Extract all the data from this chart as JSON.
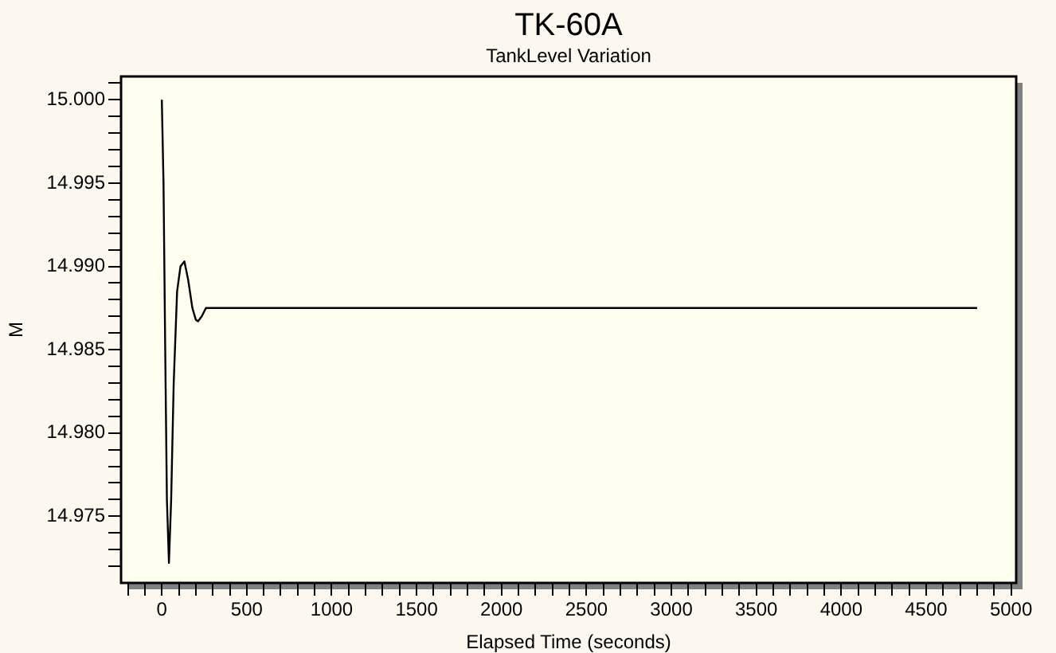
{
  "chart_data": {
    "type": "line",
    "title": "TK-60A",
    "subtitle": "TankLevel Variation",
    "xlabel": "Elapsed Time (seconds)",
    "ylabel": "M",
    "series": [
      {
        "color": "#000000",
        "x": [
          0,
          10,
          20,
          30,
          42,
          55,
          70,
          90,
          110,
          133,
          155,
          180,
          200,
          213,
          235,
          260,
          4800
        ],
        "values": [
          15.0,
          14.995,
          14.985,
          14.976,
          14.9722,
          14.976,
          14.983,
          14.9885,
          14.99,
          14.9903,
          14.9892,
          14.9875,
          14.9868,
          14.9867,
          14.987,
          14.9875,
          14.9875
        ]
      }
    ],
    "xlim": [
      -240,
      5030
    ],
    "ylim": [
      14.971,
      15.0014
    ],
    "xticks": [
      {
        "value": -200,
        "label": null
      },
      {
        "value": -100,
        "label": null
      },
      0,
      {
        "value": 100,
        "label": null
      },
      {
        "value": 200,
        "label": null
      },
      {
        "value": 300,
        "label": null
      },
      {
        "value": 400,
        "label": null
      },
      500,
      {
        "value": 600,
        "label": null
      },
      {
        "value": 700,
        "label": null
      },
      {
        "value": 800,
        "label": null
      },
      {
        "value": 900,
        "label": null
      },
      1000,
      {
        "value": 1100,
        "label": null
      },
      {
        "value": 1200,
        "label": null
      },
      {
        "value": 1300,
        "label": null
      },
      {
        "value": 1400,
        "label": null
      },
      1500,
      {
        "value": 1600,
        "label": null
      },
      {
        "value": 1700,
        "label": null
      },
      {
        "value": 1800,
        "label": null
      },
      {
        "value": 1900,
        "label": null
      },
      2000,
      {
        "value": 2100,
        "label": null
      },
      {
        "value": 2200,
        "label": null
      },
      {
        "value": 2300,
        "label": null
      },
      {
        "value": 2400,
        "label": null
      },
      2500,
      {
        "value": 2600,
        "label": null
      },
      {
        "value": 2700,
        "label": null
      },
      {
        "value": 2800,
        "label": null
      },
      {
        "value": 2900,
        "label": null
      },
      3000,
      {
        "value": 3100,
        "label": null
      },
      {
        "value": 3200,
        "label": null
      },
      {
        "value": 3300,
        "label": null
      },
      {
        "value": 3400,
        "label": null
      },
      3500,
      {
        "value": 3600,
        "label": null
      },
      {
        "value": 3700,
        "label": null
      },
      {
        "value": 3800,
        "label": null
      },
      {
        "value": 3900,
        "label": null
      },
      4000,
      {
        "value": 4100,
        "label": null
      },
      {
        "value": 4200,
        "label": null
      },
      {
        "value": 4300,
        "label": null
      },
      {
        "value": 4400,
        "label": null
      },
      4500,
      {
        "value": 4600,
        "label": null
      },
      {
        "value": 4700,
        "label": null
      },
      {
        "value": 4800,
        "label": null
      },
      {
        "value": 4900,
        "label": null
      },
      5000
    ],
    "yticks": [
      {
        "value": 14.972,
        "label": null
      },
      {
        "value": 14.973,
        "label": null
      },
      {
        "value": 14.974,
        "label": null
      },
      {
        "value": 14.975,
        "label": "14.975"
      },
      {
        "value": 14.976,
        "label": null
      },
      {
        "value": 14.977,
        "label": null
      },
      {
        "value": 14.978,
        "label": null
      },
      {
        "value": 14.979,
        "label": null
      },
      {
        "value": 14.98,
        "label": "14.980"
      },
      {
        "value": 14.981,
        "label": null
      },
      {
        "value": 14.982,
        "label": null
      },
      {
        "value": 14.983,
        "label": null
      },
      {
        "value": 14.984,
        "label": null
      },
      {
        "value": 14.985,
        "label": "14.985"
      },
      {
        "value": 14.986,
        "label": null
      },
      {
        "value": 14.987,
        "label": null
      },
      {
        "value": 14.988,
        "label": null
      },
      {
        "value": 14.989,
        "label": null
      },
      {
        "value": 14.99,
        "label": "14.990"
      },
      {
        "value": 14.991,
        "label": null
      },
      {
        "value": 14.992,
        "label": null
      },
      {
        "value": 14.993,
        "label": null
      },
      {
        "value": 14.994,
        "label": null
      },
      {
        "value": 14.995,
        "label": "14.995"
      },
      {
        "value": 14.996,
        "label": null
      },
      {
        "value": 14.997,
        "label": null
      },
      {
        "value": 14.998,
        "label": null
      },
      {
        "value": 14.999,
        "label": null
      },
      {
        "value": 15,
        "label": "15.000"
      },
      {
        "value": 15.001,
        "label": null
      }
    ],
    "grid": false,
    "legend": false,
    "marker": "none",
    "line_style": "solid"
  }
}
